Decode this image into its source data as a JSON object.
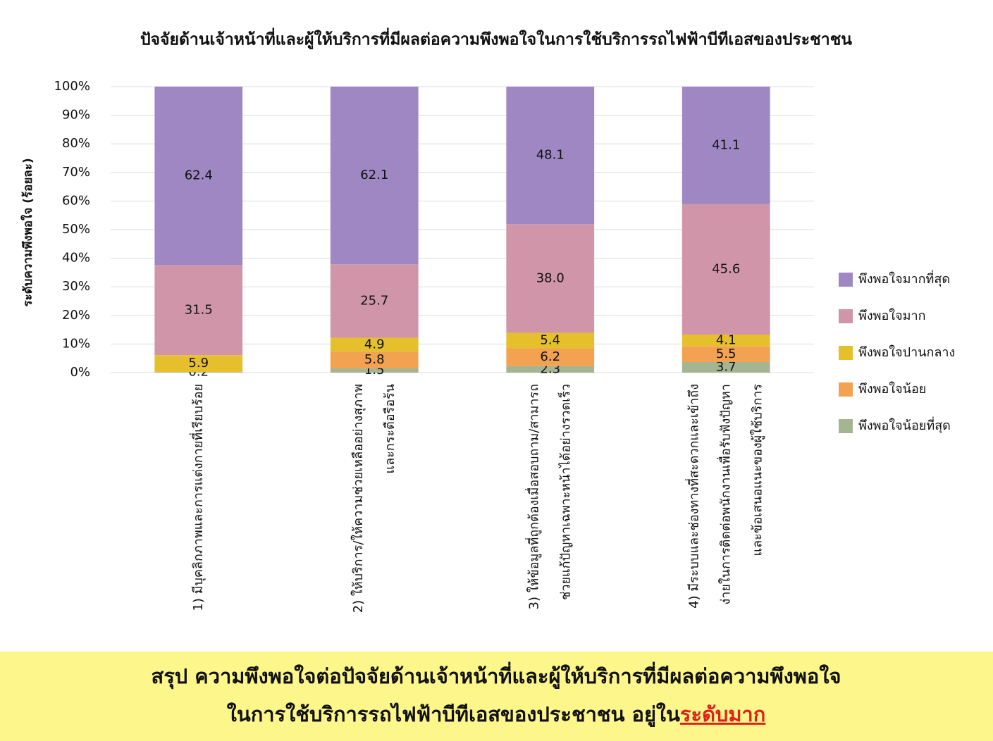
{
  "chart_data": {
    "type": "stacked_bar",
    "title": "ปัจจัยด้านเจ้าหน้าที่และผู้ให้บริการที่มีผลต่อความพึงพอใจในการใช้บริการรถไฟฟ้าบีทีเอสของประชาชน",
    "y_label": "ระดับความพึงพอใจ (ร้อยละ)",
    "categories": [
      [
        "1) มีบุคลิกภาพและการแต่งกายที่เรียบร้อย"
      ],
      [
        "2) ให้บริการ/ให้ความช่วยเหลืออย่างสุภาพ",
        "และกระตือรือร้น"
      ],
      [
        "3) ให้ข้อมูลที่ถูกต้องเมื่อสอบถาม/สามารถ",
        "ช่วยแก้ปัญหาเฉพาะหน้าได้อย่างรวดเร็ว"
      ],
      [
        "4) มีระบบและช่องทางที่สะดวกและเข้าถึง",
        "ง่ายในการติดต่อพนักงานเพื่อรับฟังปัญหา",
        "และข้อเสนอแนะของผู้ใช้บริการ"
      ]
    ],
    "series": [
      {
        "name": "พึงพอใจน้อยที่สุด",
        "color": "#a5b591",
        "values": [
          0.2,
          1.5,
          2.3,
          3.7
        ]
      },
      {
        "name": "พึงพอใจน้อย",
        "color": "#f2a250",
        "values": [
          null,
          5.8,
          6.2,
          5.5
        ]
      },
      {
        "name": "พึงพอใจปานกลาง",
        "color": "#e6c02c",
        "values": [
          5.9,
          4.9,
          5.4,
          4.1
        ]
      },
      {
        "name": "พึงพอใจมาก",
        "color": "#d095a8",
        "values": [
          31.5,
          25.7,
          38.0,
          45.6
        ],
        "value_labels": [
          "31.5",
          "25.7",
          "38.0",
          "45.6"
        ]
      },
      {
        "name": "พึงพอใจมากที่สุด",
        "color": "#9e87c3",
        "values": [
          62.4,
          62.1,
          48.1,
          41.1
        ]
      }
    ],
    "ylim": [
      0,
      100
    ],
    "yticks": [
      {
        "value": 0,
        "label": "0%"
      },
      {
        "value": 10,
        "label": "10%"
      },
      {
        "value": 20,
        "label": "20%"
      },
      {
        "value": 30,
        "label": "30%"
      },
      {
        "value": 40,
        "label": "40%"
      },
      {
        "value": 50,
        "label": "50%"
      },
      {
        "value": 60,
        "label": "60%"
      },
      {
        "value": 70,
        "label": "70%"
      },
      {
        "value": 80,
        "label": "80%"
      },
      {
        "value": 90,
        "label": "90%"
      },
      {
        "value": 100,
        "label": "100%"
      }
    ],
    "grid": true,
    "legend": "right"
  },
  "summary": {
    "lines": [
      "สรุป ความพึงพอใจต่อปัจจัยด้านเจ้าหน้าที่และผู้ให้บริการที่มีผลต่อความพึงพอใจ",
      "ในการใช้บริการรถไฟฟ้าบีทีเอสของประชาชน อยู่ใน"
    ],
    "highlight": "ระดับมาก"
  }
}
